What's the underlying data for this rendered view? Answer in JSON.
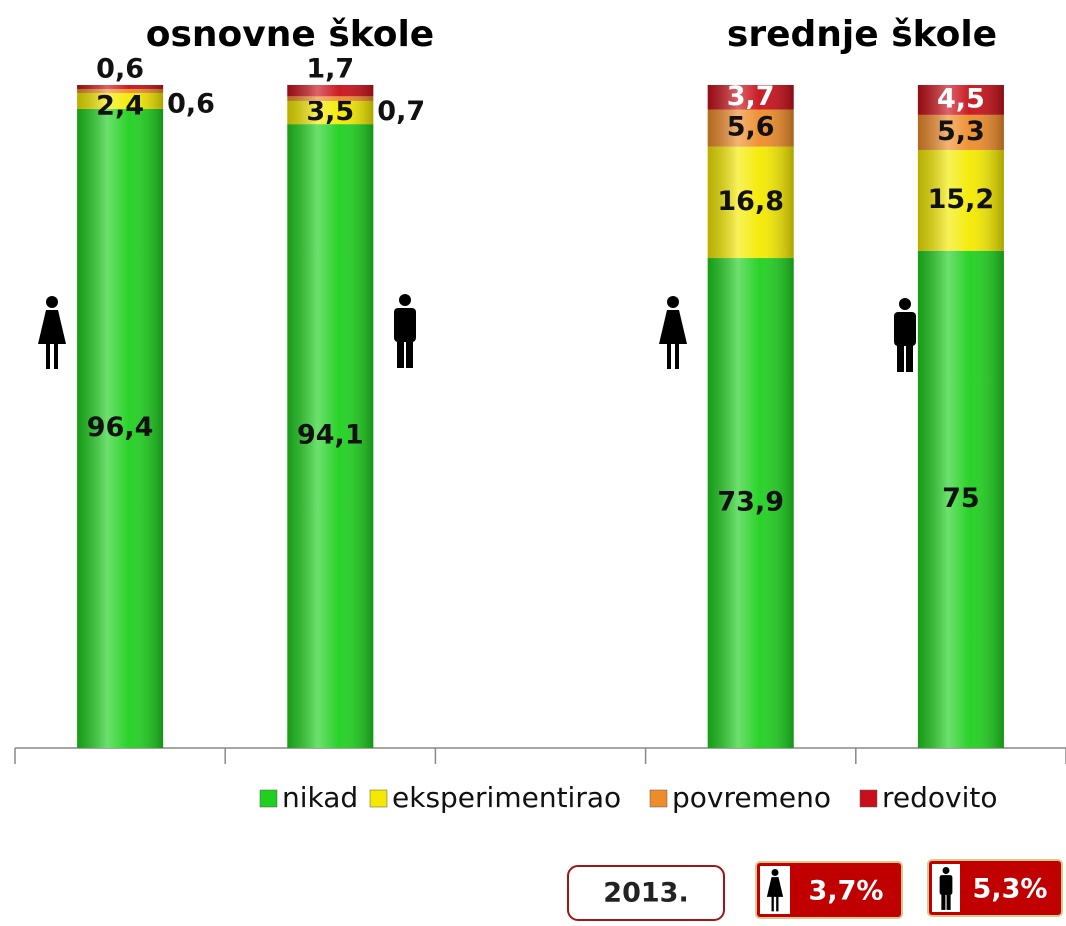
{
  "chart_data": {
    "type": "stacked_bar",
    "categories": [
      null,
      null,
      null,
      null,
      null
    ],
    "group_labels": [
      "osnovne škole",
      "srednje škole"
    ],
    "ylim": [
      0,
      100
    ],
    "series": [
      {
        "name": "nikad",
        "color": "#1fd01f",
        "values": [
          96.4,
          94.1,
          null,
          73.9,
          75
        ],
        "value_labels": [
          "96,4",
          "94,1",
          null,
          "73,9",
          "75"
        ]
      },
      {
        "name": "eksperimentirao",
        "color": "#f4ea00",
        "values": [
          2.4,
          3.5,
          null,
          16.8,
          15.2
        ],
        "value_labels": [
          "2,4",
          "3,5",
          null,
          "16,8",
          "15,2"
        ]
      },
      {
        "name": "povremeno",
        "color": "#ee8c2a",
        "values": [
          0.6,
          0.7,
          null,
          5.6,
          5.3
        ],
        "value_labels": [
          "0,6",
          "0,7",
          null,
          "5,6",
          "5,3"
        ]
      },
      {
        "name": "redovito",
        "color": "#c8101a",
        "values": [
          0.6,
          1.7,
          null,
          3.7,
          4.5
        ],
        "value_labels": [
          "0,6",
          "1,7",
          null,
          "3,7",
          "4,5"
        ]
      }
    ],
    "notes": {
      "year": "2013.",
      "female": "3,7%",
      "male": "5,3%"
    }
  }
}
